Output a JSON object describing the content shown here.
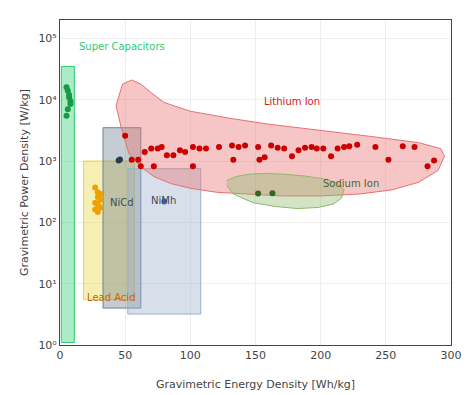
{
  "chart_data": {
    "type": "scatter",
    "xlabel": "Gravimetric Energy Density [Wh/kg]",
    "ylabel": "Gravimetric Power Density [W/kg]",
    "log": "y",
    "grid": true,
    "xlim": [
      0,
      300
    ],
    "ylim": [
      1,
      200000
    ],
    "xticks": [
      0,
      50,
      100,
      150,
      200,
      250,
      300
    ],
    "yticks": [
      {
        "value": 1,
        "label": "10⁰"
      },
      {
        "value": 10,
        "label": "10¹"
      },
      {
        "value": 100,
        "label": "10²"
      },
      {
        "value": 1000,
        "label": "10³"
      },
      {
        "value": 10000,
        "label": "10⁴"
      },
      {
        "value": 100000,
        "label": "10⁵"
      }
    ],
    "series": [
      {
        "type": "polygon",
        "color": "#2ecc71",
        "x": [
          1,
          1,
          11,
          11,
          1
        ],
        "y": [
          1.1,
          35000,
          35000,
          1.1,
          1.1
        ]
      },
      {
        "type": "polygon",
        "color": "#e8d840",
        "x": [
          18,
          18,
          57,
          57,
          18
        ],
        "y": [
          5.5,
          1000,
          1000,
          5.5,
          5.5
        ]
      },
      {
        "type": "polygon",
        "color": "#708090",
        "x": [
          33,
          33,
          62,
          62,
          33
        ],
        "y": [
          4,
          3500,
          3500,
          4,
          4
        ]
      },
      {
        "type": "polygon",
        "color": "#9bb0cc",
        "x": [
          52,
          52,
          108,
          108,
          52
        ],
        "y": [
          3.2,
          750,
          750,
          3.2,
          3.2
        ]
      },
      {
        "type": "polygon",
        "color": "#e87070",
        "x": [
          43,
          48,
          55,
          62,
          70,
          80,
          100,
          130,
          160,
          200,
          240,
          275,
          292,
          295,
          290,
          275,
          255,
          230,
          200,
          170,
          145,
          120,
          100,
          85,
          72,
          62,
          53,
          47,
          43
        ],
        "y": [
          8000,
          18000,
          21000,
          18000,
          13000,
          9000,
          6500,
          5000,
          4000,
          3200,
          2500,
          2000,
          1600,
          1200,
          700,
          450,
          340,
          290,
          270,
          270,
          290,
          310,
          360,
          430,
          560,
          800,
          1300,
          3500,
          8000
        ]
      },
      {
        "type": "polygon",
        "color": "#90b870",
        "x": [
          128,
          135,
          145,
          158,
          172,
          188,
          203,
          213,
          218,
          216,
          210,
          198,
          182,
          165,
          148,
          133,
          128
        ],
        "y": [
          480,
          560,
          610,
          630,
          610,
          570,
          510,
          440,
          340,
          250,
          200,
          175,
          168,
          182,
          210,
          290,
          400
        ]
      },
      {
        "type": "scatter",
        "color": "#1a9945",
        "x": [
          5,
          6,
          7,
          7,
          8,
          8,
          6,
          5
        ],
        "y": [
          16000,
          14000,
          12000,
          11000,
          9500,
          8500,
          7000,
          5500
        ]
      },
      {
        "type": "scatter",
        "color": "#f0a000",
        "x": [
          27,
          29,
          31,
          29,
          31,
          27,
          29,
          31,
          27,
          29
        ],
        "y": [
          370,
          310,
          290,
          260,
          235,
          210,
          195,
          175,
          162,
          148
        ]
      },
      {
        "type": "scatter",
        "color": "#2a3a4a",
        "x": [
          45,
          46
        ],
        "y": [
          1020,
          1060
        ]
      },
      {
        "type": "scatter",
        "color": "#4466aa",
        "x": [
          80
        ],
        "y": [
          220
        ]
      },
      {
        "type": "scatter",
        "color": "#336622",
        "x": [
          152,
          163
        ],
        "y": [
          295,
          300
        ]
      },
      {
        "type": "scatter",
        "color": "#cc0000",
        "x": [
          50,
          55,
          60,
          65,
          70,
          75,
          78,
          82,
          87,
          92,
          96,
          102,
          107,
          112,
          122,
          132,
          137,
          142,
          152,
          162,
          167,
          172,
          178,
          183,
          188,
          193,
          197,
          202,
          208,
          213,
          218,
          222,
          228,
          242,
          252,
          263,
          272,
          282,
          287,
          62,
          72,
          102,
          133,
          153,
          157
        ],
        "y": [
          2600,
          1050,
          1050,
          1400,
          1600,
          1600,
          1700,
          1250,
          1250,
          1500,
          1400,
          1700,
          1600,
          1600,
          1700,
          1800,
          1700,
          1800,
          1700,
          1800,
          1650,
          1600,
          1200,
          1500,
          1650,
          1700,
          1600,
          1600,
          1200,
          1600,
          1700,
          1750,
          1850,
          1700,
          1050,
          1750,
          1700,
          820,
          1020,
          820,
          820,
          820,
          1050,
          1050,
          1150
        ]
      }
    ],
    "annotations": [
      {
        "text": "Super Capacitors",
        "x": 13,
        "y": 55000,
        "color": "#2ecc71"
      },
      {
        "text": "Lead Acid",
        "x": 19,
        "y": 4.5,
        "color": "#cc6600"
      },
      {
        "text": "NiCd",
        "x": 37,
        "y": 160,
        "color": "#3a4a5a"
      },
      {
        "text": "NiMh",
        "x": 68,
        "y": 170,
        "color": "#3a4a5a"
      },
      {
        "text": "Sodium Ion",
        "x": 200,
        "y": 330,
        "color": "#446633"
      },
      {
        "text": "Lithium Ion",
        "x": 155,
        "y": 7000,
        "color": "#cc2222"
      }
    ]
  }
}
